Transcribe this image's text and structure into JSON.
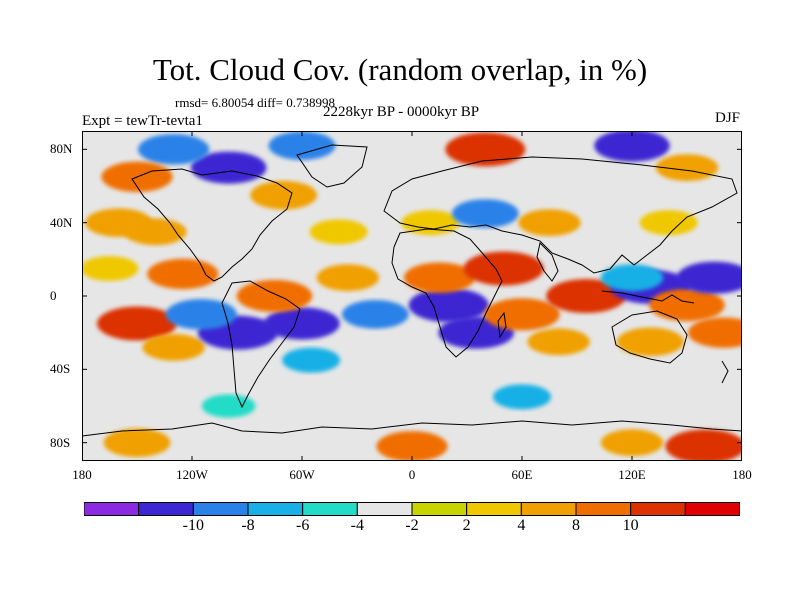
{
  "title": "Tot. Cloud Cov. (random overlap, in %)",
  "stats": "rmsd= 6.80054 diff= 0.738998",
  "experiment": "Expt = tewTr-tevta1",
  "period": "2228kyr BP - 0000kyr BP",
  "season": "DJF",
  "map": {
    "projection": "cylindrical equidistant",
    "lon_range": [
      -180,
      180
    ],
    "lat_range": [
      -90,
      90
    ],
    "lon_ticks": [
      {
        "value": -180,
        "label": "180"
      },
      {
        "value": -120,
        "label": "120W"
      },
      {
        "value": -60,
        "label": "60W"
      },
      {
        "value": 0,
        "label": "0"
      },
      {
        "value": 60,
        "label": "60E"
      },
      {
        "value": 120,
        "label": "120E"
      },
      {
        "value": 180,
        "label": "180"
      }
    ],
    "lat_ticks": [
      {
        "value": 80,
        "label": "80N"
      },
      {
        "value": 40,
        "label": "40N"
      },
      {
        "value": 0,
        "label": "0"
      },
      {
        "value": -40,
        "label": "40S"
      },
      {
        "value": -80,
        "label": "80S"
      }
    ],
    "coastlines": true,
    "anomaly_regions": [
      {
        "lon": -150,
        "lat": -15,
        "level": 10
      },
      {
        "lon": -125,
        "lat": 12,
        "level": 8
      },
      {
        "lon": -130,
        "lat": -28,
        "level": 6
      },
      {
        "lon": -165,
        "lat": 15,
        "level": 5
      },
      {
        "lon": -95,
        "lat": -20,
        "level": -10
      },
      {
        "lon": -115,
        "lat": -10,
        "level": -8
      },
      {
        "lon": -60,
        "lat": -15,
        "level": -9
      },
      {
        "lon": -75,
        "lat": 0,
        "level": 9
      },
      {
        "lon": -55,
        "lat": -35,
        "level": -5
      },
      {
        "lon": -20,
        "lat": -10,
        "level": -7
      },
      {
        "lon": -35,
        "lat": 10,
        "level": 6
      },
      {
        "lon": 20,
        "lat": -5,
        "level": -10
      },
      {
        "lon": 35,
        "lat": -20,
        "level": -9
      },
      {
        "lon": 15,
        "lat": 10,
        "level": 8
      },
      {
        "lon": 50,
        "lat": 15,
        "level": 10
      },
      {
        "lon": 60,
        "lat": -10,
        "level": 9
      },
      {
        "lon": 80,
        "lat": -25,
        "level": 6
      },
      {
        "lon": 95,
        "lat": 0,
        "level": 10
      },
      {
        "lon": 130,
        "lat": 5,
        "level": -10
      },
      {
        "lon": 120,
        "lat": 10,
        "level": -6
      },
      {
        "lon": 150,
        "lat": -5,
        "level": 9
      },
      {
        "lon": 165,
        "lat": 10,
        "level": -9
      },
      {
        "lon": 170,
        "lat": -20,
        "level": 8
      },
      {
        "lon": 130,
        "lat": -25,
        "level": 7
      },
      {
        "lon": -140,
        "lat": 35,
        "level": 6
      },
      {
        "lon": -160,
        "lat": 40,
        "level": 7
      },
      {
        "lon": -40,
        "lat": 35,
        "level": 5
      },
      {
        "lon": 10,
        "lat": 40,
        "level": 5
      },
      {
        "lon": 40,
        "lat": 45,
        "level": -7
      },
      {
        "lon": 75,
        "lat": 40,
        "level": 6
      },
      {
        "lon": 140,
        "lat": 40,
        "level": 5
      },
      {
        "lon": -100,
        "lat": 70,
        "level": -9
      },
      {
        "lon": -130,
        "lat": 80,
        "level": -8
      },
      {
        "lon": -60,
        "lat": 82,
        "level": -7
      },
      {
        "lon": 40,
        "lat": 80,
        "level": 10
      },
      {
        "lon": 120,
        "lat": 82,
        "level": -9
      },
      {
        "lon": -150,
        "lat": 65,
        "level": 8
      },
      {
        "lon": -70,
        "lat": 55,
        "level": 7
      },
      {
        "lon": 150,
        "lat": 70,
        "level": 6
      },
      {
        "lon": -100,
        "lat": -60,
        "level": -4
      },
      {
        "lon": 60,
        "lat": -55,
        "level": -5
      },
      {
        "lon": -150,
        "lat": -80,
        "level": 7
      },
      {
        "lon": 0,
        "lat": -82,
        "level": 8
      },
      {
        "lon": 120,
        "lat": -80,
        "level": 6
      },
      {
        "lon": 160,
        "lat": -82,
        "level": 10
      }
    ]
  },
  "colorbar": {
    "colors": [
      "#8a2be2",
      "#3c28d2",
      "#2a82e8",
      "#18b0e6",
      "#22dcc8",
      "#e6e6e6",
      "#c8d400",
      "#f0c800",
      "#f0a000",
      "#f06e00",
      "#dc3200",
      "#e00000"
    ],
    "labels": [
      {
        "text": "-10",
        "edge": 1
      },
      {
        "text": "-8",
        "edge": 2
      },
      {
        "text": "-6",
        "edge": 3
      },
      {
        "text": "-4",
        "edge": 4
      },
      {
        "text": "-2",
        "edge": 5
      },
      {
        "text": "2",
        "edge": 6
      },
      {
        "text": "4",
        "edge": 7
      },
      {
        "text": "8",
        "edge": 8
      },
      {
        "text": "10",
        "edge": 9
      }
    ]
  }
}
